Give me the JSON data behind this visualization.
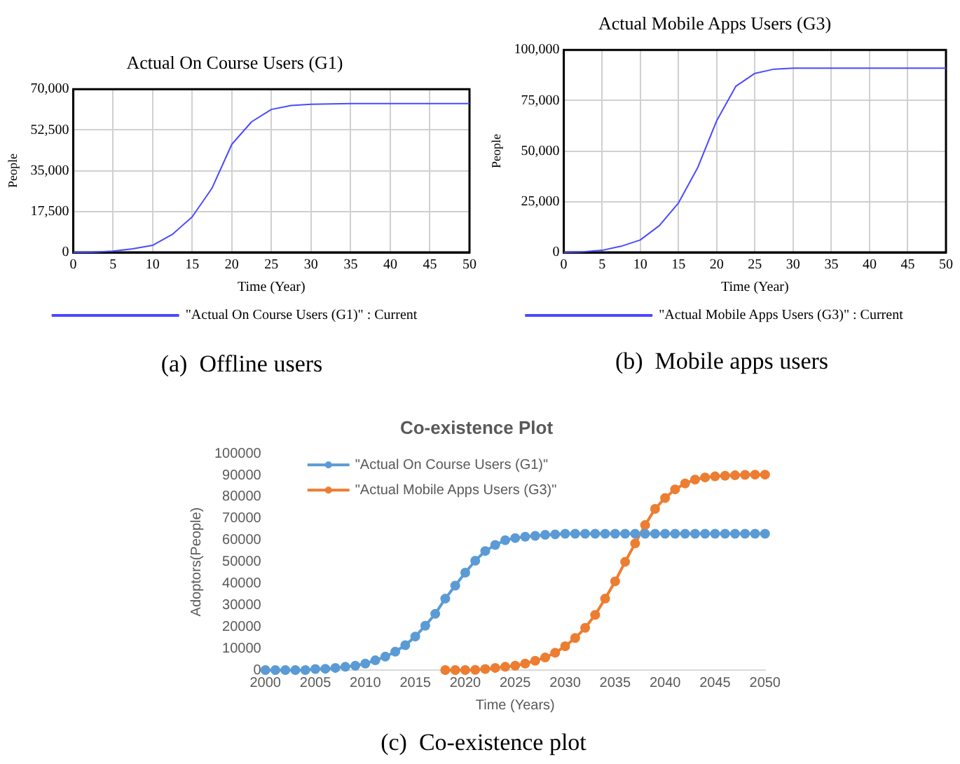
{
  "chart_data": [
    {
      "type": "line",
      "title": "Actual On Course Users (G1)",
      "xlabel": "Time (Year)",
      "ylabel": "People",
      "annotations": [
        "(a)  Offline users"
      ],
      "x": [
        0,
        2.5,
        5,
        7.5,
        10,
        12.5,
        15,
        17.5,
        20,
        22.5,
        25,
        27.5,
        30,
        35,
        40,
        45,
        50
      ],
      "series": [
        {
          "name": "\"Actual On Course Users (G1)\" : Current",
          "color": "#4a4aff",
          "values": [
            0,
            100,
            500,
            1500,
            3000,
            7700,
            15200,
            27500,
            46300,
            56000,
            61300,
            63000,
            63500,
            63800,
            63800,
            63800,
            63800
          ]
        }
      ],
      "xlim": [
        0,
        50
      ],
      "xticks": [
        0,
        5,
        10,
        15,
        20,
        25,
        30,
        35,
        40,
        45,
        50
      ],
      "ylim": [
        0,
        70000
      ],
      "yticks": [
        {
          "value": 0,
          "label": "0"
        },
        {
          "value": 17500,
          "label": "17,500"
        },
        {
          "value": 35000,
          "label": "35,000"
        },
        {
          "value": 52500,
          "label": "52,500"
        },
        {
          "value": 70000,
          "label": "70,000"
        }
      ],
      "grid": true,
      "legend": "bottom",
      "marker": "none"
    },
    {
      "type": "line",
      "title": "Actual Mobile Apps Users (G3)",
      "xlabel": "Time (Year)",
      "ylabel": "People",
      "annotations": [
        "(b)  Mobile apps users"
      ],
      "x": [
        0,
        2.5,
        5,
        7.5,
        10,
        12.5,
        15,
        17.5,
        20,
        22.5,
        25,
        27.5,
        30,
        35,
        40,
        45,
        50
      ],
      "series": [
        {
          "name": "\"Actual Mobile Apps Users (G3)\" : Current",
          "color": "#4a4aff",
          "values": [
            0,
            300,
            1000,
            3000,
            6100,
            13200,
            24400,
            41700,
            65000,
            82000,
            88400,
            90500,
            91000,
            91000,
            91000,
            91000,
            91000
          ]
        }
      ],
      "xlim": [
        0,
        50
      ],
      "xticks": [
        0,
        5,
        10,
        15,
        20,
        25,
        30,
        35,
        40,
        45,
        50
      ],
      "ylim": [
        0,
        100000
      ],
      "yticks": [
        {
          "value": 0,
          "label": "0"
        },
        {
          "value": 25000,
          "label": "25,000"
        },
        {
          "value": 50000,
          "label": "50,000"
        },
        {
          "value": 75000,
          "label": "75,000"
        },
        {
          "value": 100000,
          "label": "100,000"
        }
      ],
      "grid": true,
      "legend": "bottom",
      "marker": "none"
    },
    {
      "type": "line",
      "title": "Co-existence Plot",
      "xlabel": "Time (Years)",
      "ylabel": "Adoptors(People)",
      "annotations": [
        "(c)  Co-existence plot"
      ],
      "series": [
        {
          "name": "\"Actual On Course Users (G1)\"",
          "color": "#5b9bd5",
          "x": [
            2000,
            2001,
            2002,
            2003,
            2004,
            2005,
            2006,
            2007,
            2008,
            2009,
            2010,
            2011,
            2012,
            2013,
            2014,
            2015,
            2016,
            2017,
            2018,
            2019,
            2020,
            2021,
            2022,
            2023,
            2024,
            2025,
            2026,
            2027,
            2028,
            2029,
            2030,
            2031,
            2032,
            2033,
            2034,
            2035,
            2036,
            2037,
            2038,
            2039,
            2040,
            2041,
            2042,
            2043,
            2044,
            2045,
            2046,
            2047,
            2048,
            2049,
            2050
          ],
          "values": [
            0,
            0,
            0,
            0,
            0,
            500,
            600,
            1000,
            1500,
            2000,
            3000,
            4500,
            6200,
            8500,
            11500,
            15500,
            20500,
            26000,
            33000,
            39000,
            45000,
            50500,
            55000,
            57800,
            60000,
            61000,
            61600,
            62000,
            62500,
            62700,
            63000,
            63000,
            63000,
            63000,
            63000,
            63000,
            63000,
            63000,
            63000,
            63000,
            63000,
            63000,
            63000,
            63000,
            63000,
            63000,
            63000,
            63000,
            63000,
            63000,
            63000
          ]
        },
        {
          "name": "\"Actual Mobile Apps Users (G3)\"",
          "color": "#ed7d31",
          "x": [
            2018,
            2019,
            2020,
            2021,
            2022,
            2023,
            2024,
            2025,
            2026,
            2027,
            2028,
            2029,
            2030,
            2031,
            2032,
            2033,
            2034,
            2035,
            2036,
            2037,
            2038,
            2039,
            2040,
            2041,
            2042,
            2043,
            2044,
            2045,
            2046,
            2047,
            2048,
            2049,
            2050
          ],
          "values": [
            0,
            0,
            0,
            100,
            500,
            1000,
            1500,
            2000,
            3000,
            4300,
            5800,
            8000,
            11000,
            14800,
            19500,
            25500,
            33000,
            41000,
            50000,
            58500,
            67000,
            74500,
            79500,
            83500,
            86200,
            88000,
            89000,
            89500,
            89800,
            90000,
            90200,
            90300,
            90300
          ]
        }
      ],
      "xlim": [
        2000,
        2050
      ],
      "xticks": [
        2000,
        2005,
        2010,
        2015,
        2020,
        2025,
        2030,
        2035,
        2040,
        2045,
        2050
      ],
      "ylim": [
        0,
        100000
      ],
      "yticks": [
        0,
        10000,
        20000,
        30000,
        40000,
        50000,
        60000,
        70000,
        80000,
        90000,
        100000
      ],
      "grid": false,
      "legend": "top left",
      "marker": "circle"
    }
  ]
}
